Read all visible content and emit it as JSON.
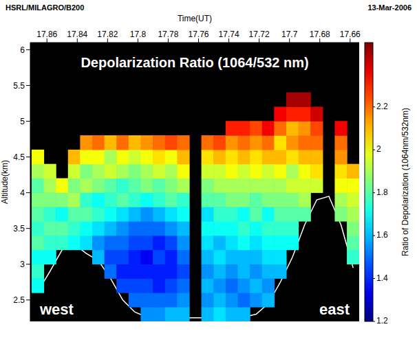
{
  "chart_data": {
    "type": "heatmap",
    "title": "Depolarization Ratio (1064/532 nm)",
    "annotations": [
      "HSRL/MILAGRO/B200",
      "13-Mar-2006",
      "west",
      "east"
    ],
    "x_label": "Time(UT)",
    "y_label": "Altitude(km)",
    "xlim": [
      17.871,
      17.654
    ],
    "xticks": [
      17.86,
      17.84,
      17.82,
      17.8,
      17.78,
      17.76,
      17.74,
      17.72,
      17.7,
      17.68,
      17.66
    ],
    "ylim": [
      2.2,
      6.1
    ],
    "yticks": [
      2.5,
      3,
      3.5,
      4,
      4.5,
      5,
      5.5,
      6
    ],
    "grid": false,
    "x": [
      17.866,
      17.858,
      17.85,
      17.842,
      17.834,
      17.826,
      17.818,
      17.81,
      17.802,
      17.794,
      17.786,
      17.778,
      17.77,
      17.762,
      17.754,
      17.746,
      17.738,
      17.73,
      17.722,
      17.714,
      17.706,
      17.698,
      17.69,
      17.682,
      17.674,
      17.666,
      17.658
    ],
    "y": [
      2.3,
      2.5,
      2.7,
      2.9,
      3.1,
      3.3,
      3.5,
      3.7,
      3.9,
      4.1,
      4.3,
      4.5,
      4.7,
      4.9,
      5.1,
      5.3
    ],
    "cells": [
      [
        null,
        null,
        1.7,
        1.75,
        1.7,
        1.8,
        1.75,
        1.8,
        1.85,
        1.8,
        1.9,
        2.0,
        null,
        null,
        null,
        null
      ],
      [
        null,
        null,
        null,
        null,
        1.7,
        1.75,
        1.8,
        1.75,
        1.85,
        1.9,
        1.95,
        null,
        null,
        null,
        null,
        null
      ],
      [
        null,
        null,
        null,
        null,
        null,
        1.75,
        1.8,
        1.7,
        1.85,
        2.0,
        null,
        null,
        null,
        null,
        null,
        null
      ],
      [
        null,
        null,
        null,
        null,
        null,
        1.7,
        1.75,
        1.8,
        1.9,
        1.85,
        1.95,
        2.1,
        null,
        null,
        null,
        null
      ],
      [
        null,
        null,
        null,
        null,
        null,
        1.65,
        1.7,
        1.8,
        1.75,
        1.9,
        1.85,
        2.0,
        2.15,
        null,
        null,
        null
      ],
      [
        null,
        null,
        null,
        null,
        1.6,
        1.55,
        1.65,
        1.75,
        1.7,
        1.85,
        1.9,
        2.0,
        2.2,
        null,
        null,
        null
      ],
      [
        null,
        null,
        null,
        1.5,
        1.45,
        1.5,
        1.6,
        1.7,
        1.75,
        1.8,
        1.95,
        1.9,
        2.1,
        null,
        null,
        null
      ],
      [
        null,
        null,
        1.45,
        1.4,
        1.45,
        1.5,
        1.55,
        1.65,
        1.8,
        1.75,
        1.9,
        2.0,
        2.2,
        null,
        null,
        null
      ],
      [
        null,
        1.5,
        1.45,
        1.4,
        1.4,
        1.45,
        1.5,
        1.6,
        1.75,
        1.8,
        1.85,
        1.95,
        2.1,
        null,
        null,
        null
      ],
      [
        1.55,
        1.5,
        1.45,
        1.4,
        1.35,
        1.45,
        1.5,
        1.55,
        1.7,
        1.85,
        1.9,
        2.0,
        2.15,
        null,
        null,
        null
      ],
      [
        1.55,
        1.5,
        1.4,
        1.4,
        1.45,
        1.4,
        1.5,
        1.6,
        1.75,
        1.8,
        1.95,
        2.05,
        2.2,
        null,
        null,
        null
      ],
      [
        1.6,
        1.5,
        1.45,
        1.4,
        1.4,
        1.45,
        1.55,
        1.65,
        1.8,
        1.85,
        1.9,
        2.0,
        2.25,
        null,
        null,
        null
      ],
      [
        1.6,
        1.55,
        1.5,
        1.45,
        1.5,
        1.55,
        1.6,
        1.7,
        1.75,
        1.9,
        2.0,
        2.1,
        2.2,
        null,
        null,
        null
      ],
      [
        null,
        null,
        null,
        null,
        null,
        null,
        null,
        null,
        null,
        null,
        null,
        null,
        null,
        null,
        null,
        null
      ],
      [
        1.6,
        1.55,
        1.6,
        1.55,
        1.6,
        1.65,
        1.7,
        1.65,
        1.8,
        1.85,
        1.95,
        2.05,
        2.2,
        null,
        null,
        null
      ],
      [
        1.65,
        1.6,
        1.55,
        1.6,
        1.65,
        1.6,
        1.7,
        1.75,
        1.8,
        1.9,
        1.95,
        2.1,
        2.25,
        null,
        null,
        null
      ],
      [
        1.6,
        1.55,
        1.5,
        1.55,
        1.6,
        1.65,
        1.7,
        1.75,
        1.85,
        1.9,
        2.0,
        2.05,
        2.15,
        2.3,
        null,
        null
      ],
      [
        1.6,
        1.5,
        1.55,
        1.6,
        1.6,
        1.7,
        1.75,
        1.7,
        1.85,
        1.9,
        1.95,
        2.1,
        2.2,
        2.3,
        null,
        null
      ],
      [
        null,
        1.55,
        1.6,
        1.55,
        1.6,
        1.65,
        1.7,
        1.8,
        1.8,
        1.9,
        2.0,
        2.05,
        2.15,
        2.25,
        null,
        null
      ],
      [
        null,
        1.6,
        1.55,
        1.6,
        1.65,
        1.7,
        1.75,
        1.7,
        1.85,
        1.9,
        1.95,
        2.1,
        2.2,
        2.35,
        null,
        null
      ],
      [
        null,
        null,
        null,
        1.6,
        1.65,
        1.7,
        1.75,
        1.8,
        1.85,
        1.9,
        2.0,
        2.1,
        2.05,
        2.2,
        2.35,
        null
      ],
      [
        null,
        null,
        null,
        null,
        null,
        1.7,
        1.75,
        1.8,
        1.85,
        1.95,
        1.9,
        2.05,
        2.15,
        2.1,
        2.3,
        2.45
      ],
      [
        null,
        null,
        null,
        null,
        null,
        null,
        null,
        1.8,
        1.9,
        1.95,
        2.0,
        2.1,
        2.2,
        2.15,
        2.3,
        2.45
      ],
      [
        null,
        null,
        null,
        null,
        null,
        null,
        null,
        null,
        null,
        1.95,
        2.05,
        2.1,
        2.2,
        2.25,
        2.4,
        null
      ],
      [
        null,
        null,
        null,
        null,
        null,
        null,
        null,
        null,
        null,
        null,
        null,
        null,
        null,
        null,
        null,
        null
      ],
      [
        null,
        null,
        null,
        null,
        null,
        null,
        null,
        1.85,
        1.9,
        2.0,
        2.05,
        2.15,
        2.2,
        2.35,
        null,
        null
      ],
      [
        null,
        null,
        null,
        null,
        1.75,
        1.8,
        1.85,
        1.9,
        1.95,
        2.0,
        2.1,
        null,
        null,
        null,
        null,
        null
      ]
    ],
    "terrain": [
      2.62,
      2.9,
      3.2,
      3.28,
      3.15,
      3.05,
      2.8,
      2.5,
      2.33,
      2.26,
      2.25,
      2.25,
      2.25,
      2.25,
      2.25,
      2.25,
      2.25,
      2.26,
      2.3,
      2.45,
      2.75,
      3.1,
      3.55,
      3.9,
      3.95,
      3.55,
      2.95
    ],
    "colorbar": {
      "label": "Ratio of Depolarization (1064nm/532nm)",
      "range": [
        1.2,
        2.5
      ],
      "ticks": [
        1.2,
        1.4,
        1.6,
        1.8,
        2,
        2.2
      ]
    }
  }
}
